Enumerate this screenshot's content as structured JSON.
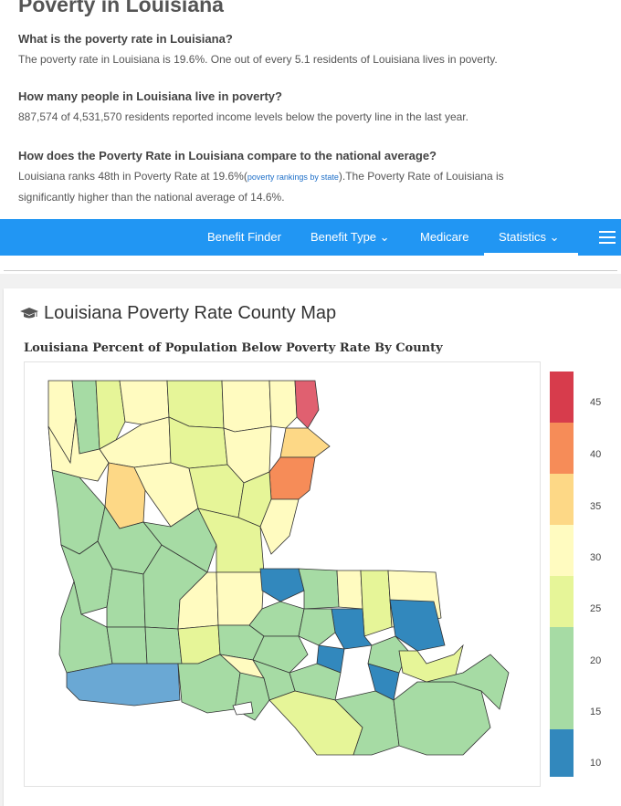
{
  "page": {
    "title": "Poverty in Louisiana",
    "qa": [
      {
        "q": "What is the poverty rate in Louisiana?",
        "a": "The poverty rate in Louisiana is 19.6%. One out of every 5.1 residents of Louisiana lives in poverty."
      },
      {
        "q": "How many people in Louisiana live in poverty?",
        "a": "887,574 of 4,531,570 residents reported income levels below the poverty line in the last year."
      },
      {
        "q": "How does the Poverty Rate in Louisiana compare to the national average?",
        "a_pre": "Louisiana ranks 48th in Poverty Rate at 19.6%(",
        "a_link": "poverty rankings by state",
        "a_post": ").The Poverty Rate of Louisiana is",
        "a_line2": "significantly higher than the national average of 14.6%."
      }
    ]
  },
  "nav": {
    "items": [
      {
        "label": "Benefit Finder"
      },
      {
        "label": "Benefit Type ⌄"
      },
      {
        "label": "Medicare"
      },
      {
        "label": "Statistics ⌄"
      }
    ],
    "active": "Statistics",
    "menu_icon": "hamburger-icon"
  },
  "map_section": {
    "heading": "Louisiana Poverty Rate County Map",
    "heading_icon": "graduation-cap-icon",
    "chart_title": "Louisiana Percent of Population Below Poverty Rate By County"
  },
  "chart_data": {
    "type": "heatmap",
    "title": "Louisiana Percent of Population Below Poverty Rate By County",
    "colorscale": [
      {
        "range": [
          45,
          50
        ],
        "color": "#d73c4c"
      },
      {
        "range": [
          40,
          45
        ],
        "color": "#f68c58"
      },
      {
        "range": [
          35,
          40
        ],
        "color": "#fdd886"
      },
      {
        "range": [
          30,
          35
        ],
        "color": "#fffbc0"
      },
      {
        "range": [
          25,
          30
        ],
        "color": "#e6f598"
      },
      {
        "range": [
          20,
          25
        ],
        "color": "#a6dba4"
      },
      {
        "range": [
          15,
          20
        ],
        "color": "#a6dba4"
      },
      {
        "range": [
          10,
          15
        ],
        "color": "#3288bd"
      }
    ],
    "legend_ticks": [
      "45",
      "40",
      "35",
      "30",
      "25",
      "20",
      "15",
      "10"
    ]
  }
}
